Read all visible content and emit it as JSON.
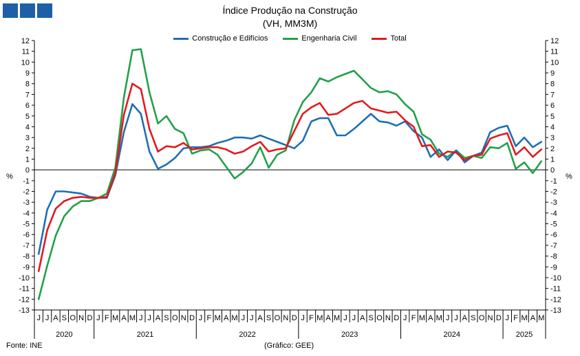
{
  "header": {
    "logo_colors": [
      "#1f5fa8",
      "#1f5fa8",
      "#1f5fa8"
    ]
  },
  "footer": {
    "source": "Fonte: INE",
    "credit": "(Gráfico: GEE)"
  },
  "chart_data": {
    "type": "line",
    "title": "Índice Produção na Construção",
    "subtitle": "(VH, MM3M)",
    "ylabel_left": "%",
    "ylabel_right": "%",
    "ylim": [
      -13,
      12
    ],
    "yticks": [
      12,
      11,
      10,
      9,
      8,
      7,
      6,
      5,
      4,
      3,
      2,
      1,
      0,
      -1,
      -2,
      -3,
      -4,
      -5,
      -6,
      -7,
      -8,
      -9,
      -10,
      -11,
      -12,
      -13
    ],
    "grid": false,
    "legend_position": "top",
    "x": [
      "J",
      "J",
      "A",
      "S",
      "O",
      "N",
      "D",
      "J",
      "F",
      "M",
      "A",
      "M",
      "J",
      "J",
      "A",
      "S",
      "O",
      "N",
      "D",
      "J",
      "F",
      "M",
      "A",
      "M",
      "J",
      "J",
      "A",
      "S",
      "O",
      "N",
      "D",
      "J",
      "F",
      "M",
      "A",
      "M",
      "J",
      "J",
      "A",
      "S",
      "O",
      "N",
      "D",
      "J",
      "F",
      "M",
      "A",
      "M",
      "J",
      "J",
      "A",
      "S",
      "O",
      "N",
      "D",
      "J",
      "F",
      "M",
      "A",
      "M"
    ],
    "years": [
      {
        "label": "2020",
        "start": 0,
        "end": 7
      },
      {
        "label": "2021",
        "start": 7,
        "end": 19
      },
      {
        "label": "2022",
        "start": 19,
        "end": 31
      },
      {
        "label": "2023",
        "start": 31,
        "end": 43
      },
      {
        "label": "2024",
        "start": 43,
        "end": 55
      },
      {
        "label": "2025",
        "start": 55,
        "end": 60
      }
    ],
    "series": [
      {
        "name": "Construção e Edifícios",
        "color": "#1f6eb4",
        "values": [
          -7.8,
          -3.7,
          -2.0,
          -2.0,
          -2.1,
          -2.2,
          -2.5,
          -2.6,
          -2.6,
          -0.5,
          3.5,
          6.1,
          5.2,
          1.7,
          0.1,
          0.5,
          1.1,
          2.0,
          2.1,
          2.1,
          2.2,
          2.5,
          2.7,
          3.0,
          3.0,
          2.9,
          3.2,
          2.9,
          2.6,
          2.3,
          2.0,
          2.7,
          4.5,
          4.8,
          4.8,
          3.2,
          3.2,
          3.8,
          4.5,
          5.2,
          4.5,
          4.4,
          4.1,
          4.5,
          3.6,
          3.0,
          1.2,
          1.9,
          0.9,
          1.8,
          0.7,
          1.3,
          1.6,
          3.5,
          3.9,
          4.1,
          2.2,
          3.0,
          2.1,
          2.6
        ]
      },
      {
        "name": "Engenharia Civil",
        "color": "#21a04a",
        "values": [
          -12.0,
          -8.9,
          -6.1,
          -4.3,
          -3.4,
          -2.9,
          -2.9,
          -2.6,
          -2.2,
          0.2,
          6.7,
          11.1,
          11.2,
          7.2,
          4.3,
          5.0,
          3.8,
          3.4,
          1.5,
          1.8,
          1.9,
          1.4,
          0.3,
          -0.8,
          -0.2,
          0.6,
          2.1,
          0.2,
          1.4,
          1.8,
          4.6,
          6.3,
          7.2,
          8.5,
          8.2,
          8.6,
          8.9,
          9.2,
          8.4,
          7.6,
          7.2,
          7.3,
          7.0,
          6.1,
          5.4,
          3.3,
          2.8,
          1.5,
          1.2,
          1.8,
          1.1,
          1.3,
          1.1,
          2.1,
          2.0,
          2.5,
          0.1,
          0.7,
          -0.3,
          0.8
        ]
      },
      {
        "name": "Total",
        "color": "#e3191c",
        "values": [
          -9.4,
          -5.6,
          -3.6,
          -2.9,
          -2.6,
          -2.5,
          -2.6,
          -2.6,
          -2.5,
          -0.3,
          5.1,
          8.0,
          7.5,
          3.8,
          1.7,
          2.2,
          2.1,
          2.5,
          1.9,
          2.0,
          2.1,
          2.1,
          1.9,
          1.5,
          1.7,
          2.2,
          2.6,
          1.7,
          1.9,
          2.0,
          3.6,
          5.2,
          5.8,
          6.2,
          5.1,
          5.2,
          5.7,
          6.2,
          6.4,
          5.7,
          5.5,
          5.3,
          5.4,
          4.6,
          4.0,
          2.2,
          2.3,
          1.2,
          1.7,
          1.6,
          0.9,
          1.3,
          1.4,
          2.9,
          3.2,
          3.4,
          1.4,
          2.1,
          1.2,
          1.9
        ]
      }
    ]
  }
}
